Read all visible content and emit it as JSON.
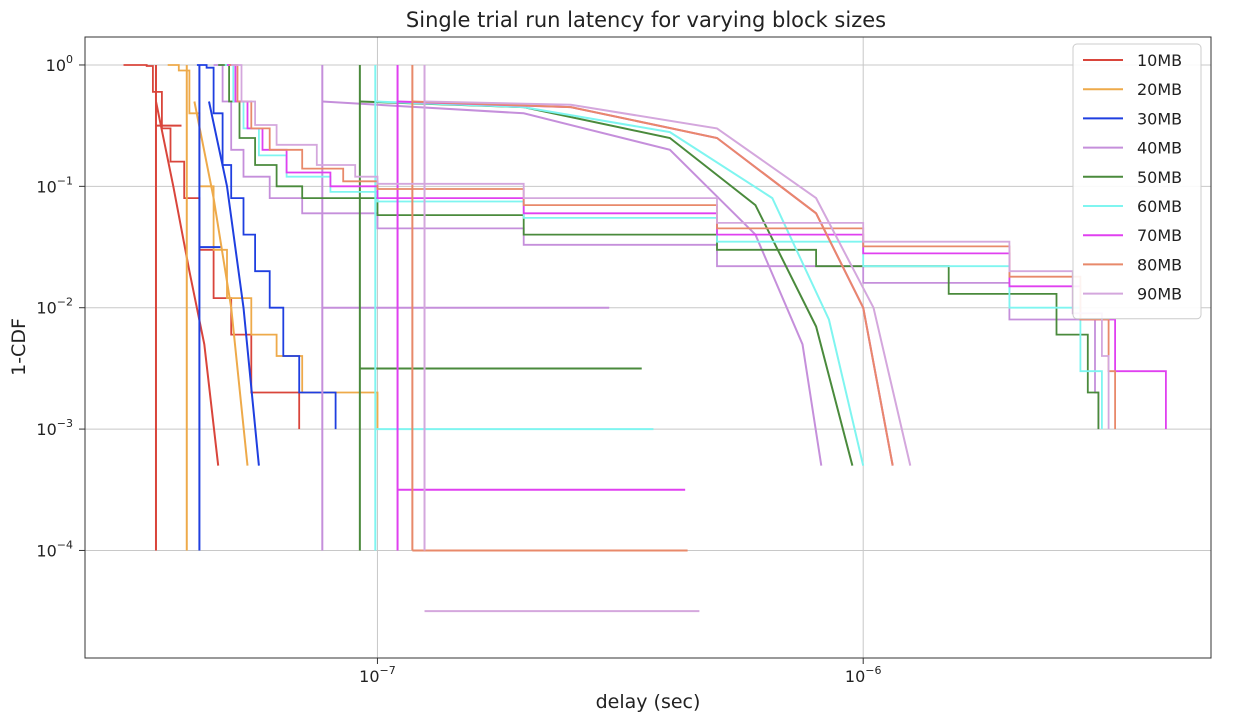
{
  "chart_data": {
    "type": "line",
    "title": "Single trial run latency for varying block sizes",
    "xlabel": "delay (sec)",
    "ylabel": "1-CDF",
    "xscale": "log",
    "yscale": "log",
    "xlim": [
      2.5e-08,
      5.2e-06
    ],
    "ylim": [
      1.3e-05,
      1.7
    ],
    "grid": true,
    "legend_position": "top-right",
    "x_ticks": [
      {
        "value": 1e-07,
        "mant": "10",
        "exp": "−7"
      },
      {
        "value": 1e-06,
        "mant": "10",
        "exp": "−6"
      }
    ],
    "y_ticks": [
      {
        "value": 1,
        "mant": "10",
        "exp": "0"
      },
      {
        "value": 0.1,
        "mant": "10",
        "exp": "−1"
      },
      {
        "value": 0.01,
        "mant": "10",
        "exp": "−2"
      },
      {
        "value": 0.001,
        "mant": "10",
        "exp": "−3"
      },
      {
        "value": 0.0001,
        "mant": "10",
        "exp": "−4"
      }
    ],
    "series": [
      {
        "name": "10MB",
        "color": "#d9453b",
        "curve": [
          [
            3e-08,
            1.0
          ],
          [
            3.35e-08,
            0.98
          ],
          [
            3.45e-08,
            0.6
          ],
          [
            3.6e-08,
            0.3
          ],
          [
            3.75e-08,
            0.16
          ],
          [
            4e-08,
            0.08
          ],
          [
            4.3e-08,
            0.03
          ],
          [
            4.6e-08,
            0.012
          ],
          [
            5e-08,
            0.006
          ],
          [
            5.5e-08,
            0.002
          ],
          [
            6.9e-08,
            0.001
          ]
        ],
        "fit": [
          [
            3.5e-08,
            0.5
          ],
          [
            3.8e-08,
            0.1
          ],
          [
            4.1e-08,
            0.02
          ],
          [
            4.4e-08,
            0.005
          ],
          [
            4.7e-08,
            0.0005
          ]
        ],
        "vline": {
          "x": 3.5e-08,
          "y": [
            0.0001,
            1.0
          ]
        },
        "hline": {
          "y": 0.3162,
          "x": [
            3.5e-08,
            3.95e-08
          ]
        }
      },
      {
        "name": "20MB",
        "color": "#eeaa4a",
        "curve": [
          [
            3.7e-08,
            1.0
          ],
          [
            3.9e-08,
            0.9
          ],
          [
            4.1e-08,
            0.4
          ],
          [
            4.3e-08,
            0.1
          ],
          [
            4.6e-08,
            0.03
          ],
          [
            4.9e-08,
            0.012
          ],
          [
            5.5e-08,
            0.006
          ],
          [
            6.2e-08,
            0.004
          ],
          [
            7e-08,
            0.002
          ],
          [
            1e-07,
            0.001
          ]
        ],
        "fit": [
          [
            4.2e-08,
            0.5
          ],
          [
            4.6e-08,
            0.08
          ],
          [
            5e-08,
            0.01
          ],
          [
            5.4e-08,
            0.0005
          ]
        ],
        "vline": {
          "x": 4.05e-08,
          "y": [
            0.0001,
            1.0
          ]
        },
        "hline": null
      },
      {
        "name": "30MB",
        "color": "#1f3fe0",
        "curve": [
          [
            4.25e-08,
            1.0
          ],
          [
            4.45e-08,
            0.95
          ],
          [
            4.6e-08,
            0.4
          ],
          [
            4.8e-08,
            0.15
          ],
          [
            5e-08,
            0.08
          ],
          [
            5.3e-08,
            0.04
          ],
          [
            5.6e-08,
            0.02
          ],
          [
            6e-08,
            0.01
          ],
          [
            6.4e-08,
            0.004
          ],
          [
            6.9e-08,
            0.002
          ],
          [
            8.2e-08,
            0.001
          ]
        ],
        "fit": [
          [
            4.5e-08,
            0.5
          ],
          [
            4.9e-08,
            0.1
          ],
          [
            5.3e-08,
            0.01
          ],
          [
            5.7e-08,
            0.0005
          ]
        ],
        "vline": {
          "x": 4.3e-08,
          "y": [
            0.0001,
            1.0
          ]
        },
        "hline": {
          "y": 0.0316,
          "x": [
            4.3e-08,
            4.75e-08
          ]
        }
      },
      {
        "name": "40MB",
        "color": "#c58fdb",
        "curve": [
          [
            4.6e-08,
            1.0
          ],
          [
            4.8e-08,
            0.5
          ],
          [
            5e-08,
            0.2
          ],
          [
            5.3e-08,
            0.12
          ],
          [
            6e-08,
            0.08
          ],
          [
            7e-08,
            0.06
          ],
          [
            1e-07,
            0.045
          ],
          [
            2e-07,
            0.033
          ],
          [
            5e-07,
            0.022
          ],
          [
            1e-06,
            0.016
          ],
          [
            2e-06,
            0.008
          ],
          [
            3e-06,
            0.002
          ],
          [
            3.05e-06,
            0.001
          ]
        ],
        "fit": [
          [
            7.7e-08,
            0.5
          ],
          [
            2e-07,
            0.4
          ],
          [
            4e-07,
            0.2
          ],
          [
            6e-07,
            0.04
          ],
          [
            7.5e-07,
            0.005
          ],
          [
            8.2e-07,
            0.0005
          ]
        ],
        "vline": {
          "x": 7.7e-08,
          "y": [
            0.0001,
            1.0
          ]
        },
        "hline": {
          "y": 0.01,
          "x": [
            7.7e-08,
            3e-07
          ]
        }
      },
      {
        "name": "50MB",
        "color": "#4a8a3c",
        "curve": [
          [
            4.7e-08,
            1.0
          ],
          [
            4.95e-08,
            0.5
          ],
          [
            5.2e-08,
            0.25
          ],
          [
            5.6e-08,
            0.15
          ],
          [
            6.2e-08,
            0.1
          ],
          [
            7e-08,
            0.08
          ],
          [
            1e-07,
            0.058
          ],
          [
            2e-07,
            0.04
          ],
          [
            5e-07,
            0.03
          ],
          [
            8e-07,
            0.022
          ],
          [
            1.5e-06,
            0.013
          ],
          [
            2.5e-06,
            0.006
          ],
          [
            2.9e-06,
            0.002
          ],
          [
            3.05e-06,
            0.001
          ]
        ],
        "fit": [
          [
            9.2e-08,
            0.5
          ],
          [
            2e-07,
            0.45
          ],
          [
            4e-07,
            0.25
          ],
          [
            6e-07,
            0.07
          ],
          [
            8e-07,
            0.007
          ],
          [
            9.5e-07,
            0.0005
          ]
        ],
        "vline": {
          "x": 9.2e-08,
          "y": [
            0.0001,
            1.0
          ]
        },
        "hline": {
          "y": 0.00316,
          "x": [
            9.2e-08,
            3.5e-07
          ]
        }
      },
      {
        "name": "60MB",
        "color": "#7ff5f0",
        "curve": [
          [
            4.85e-08,
            1.0
          ],
          [
            5.05e-08,
            0.5
          ],
          [
            5.3e-08,
            0.3
          ],
          [
            5.7e-08,
            0.18
          ],
          [
            6.5e-08,
            0.12
          ],
          [
            8e-08,
            0.09
          ],
          [
            1e-07,
            0.075
          ],
          [
            2e-07,
            0.055
          ],
          [
            5e-07,
            0.035
          ],
          [
            1e-06,
            0.022
          ],
          [
            2e-06,
            0.01
          ],
          [
            2.8e-06,
            0.003
          ],
          [
            3.1e-06,
            0.001
          ]
        ],
        "fit": [
          [
            9.9e-08,
            0.5
          ],
          [
            2e-07,
            0.45
          ],
          [
            4e-07,
            0.28
          ],
          [
            6.5e-07,
            0.08
          ],
          [
            8.5e-07,
            0.008
          ],
          [
            1e-06,
            0.0005
          ]
        ],
        "vline": {
          "x": 9.9e-08,
          "y": [
            0.0001,
            1.0
          ]
        },
        "hline": {
          "y": 0.001,
          "x": [
            9.9e-08,
            3.7e-07
          ]
        }
      },
      {
        "name": "70MB",
        "color": "#e040f0",
        "curve": [
          [
            4.9e-08,
            1.0
          ],
          [
            5.1e-08,
            0.5
          ],
          [
            5.4e-08,
            0.3
          ],
          [
            5.8e-08,
            0.2
          ],
          [
            6.5e-08,
            0.13
          ],
          [
            8e-08,
            0.1
          ],
          [
            1e-07,
            0.08
          ],
          [
            2e-07,
            0.06
          ],
          [
            5e-07,
            0.04
          ],
          [
            1e-06,
            0.028
          ],
          [
            2e-06,
            0.015
          ],
          [
            2.8e-06,
            0.008
          ],
          [
            3.3e-06,
            0.003
          ],
          [
            4.2e-06,
            0.001
          ]
        ],
        "fit": [
          [
            1.1e-07,
            0.5
          ],
          [
            2.5e-07,
            0.45
          ],
          [
            5e-07,
            0.25
          ],
          [
            8e-07,
            0.06
          ],
          [
            1e-06,
            0.01
          ],
          [
            1.15e-06,
            0.0005
          ]
        ],
        "vline": {
          "x": 1.1e-07,
          "y": [
            0.0001,
            1.0
          ]
        },
        "hline": {
          "y": 0.000316,
          "x": [
            1.1e-07,
            4.3e-07
          ]
        }
      },
      {
        "name": "80MB",
        "color": "#e8896a",
        "curve": [
          [
            4.95e-08,
            1.0
          ],
          [
            5.15e-08,
            0.5
          ],
          [
            5.5e-08,
            0.3
          ],
          [
            6e-08,
            0.2
          ],
          [
            7e-08,
            0.14
          ],
          [
            8.5e-08,
            0.11
          ],
          [
            1e-07,
            0.095
          ],
          [
            2e-07,
            0.07
          ],
          [
            5e-07,
            0.045
          ],
          [
            1e-06,
            0.032
          ],
          [
            2e-06,
            0.018
          ],
          [
            2.8e-06,
            0.008
          ],
          [
            3.2e-06,
            0.003
          ],
          [
            3.3e-06,
            0.001
          ]
        ],
        "fit": [
          [
            1.18e-07,
            0.5
          ],
          [
            2.5e-07,
            0.45
          ],
          [
            5e-07,
            0.25
          ],
          [
            8e-07,
            0.06
          ],
          [
            1e-06,
            0.01
          ],
          [
            1.15e-06,
            0.0005
          ]
        ],
        "vline": {
          "x": 1.18e-07,
          "y": [
            0.0001,
            1.0
          ]
        },
        "hline": {
          "y": 0.0001,
          "x": [
            1.18e-07,
            4.35e-07
          ]
        }
      },
      {
        "name": "90MB",
        "color": "#d4a7dd",
        "curve": [
          [
            5e-08,
            1.0
          ],
          [
            5.25e-08,
            0.5
          ],
          [
            5.6e-08,
            0.32
          ],
          [
            6.2e-08,
            0.22
          ],
          [
            7.5e-08,
            0.15
          ],
          [
            9e-08,
            0.12
          ],
          [
            1e-07,
            0.105
          ],
          [
            2e-07,
            0.08
          ],
          [
            5e-07,
            0.05
          ],
          [
            1e-06,
            0.035
          ],
          [
            2e-06,
            0.02
          ],
          [
            2.7e-06,
            0.009
          ],
          [
            3.1e-06,
            0.004
          ],
          [
            3.2e-06,
            0.001
          ]
        ],
        "fit": [
          [
            1.25e-07,
            0.5
          ],
          [
            2.5e-07,
            0.47
          ],
          [
            5e-07,
            0.3
          ],
          [
            8e-07,
            0.08
          ],
          [
            1.05e-06,
            0.01
          ],
          [
            1.25e-06,
            0.0005
          ]
        ],
        "vline": {
          "x": 1.25e-07,
          "y": [
            0.0001,
            1.0
          ]
        },
        "hline": {
          "y": 3.16e-05,
          "x": [
            1.25e-07,
            4.6e-07
          ]
        }
      }
    ]
  }
}
